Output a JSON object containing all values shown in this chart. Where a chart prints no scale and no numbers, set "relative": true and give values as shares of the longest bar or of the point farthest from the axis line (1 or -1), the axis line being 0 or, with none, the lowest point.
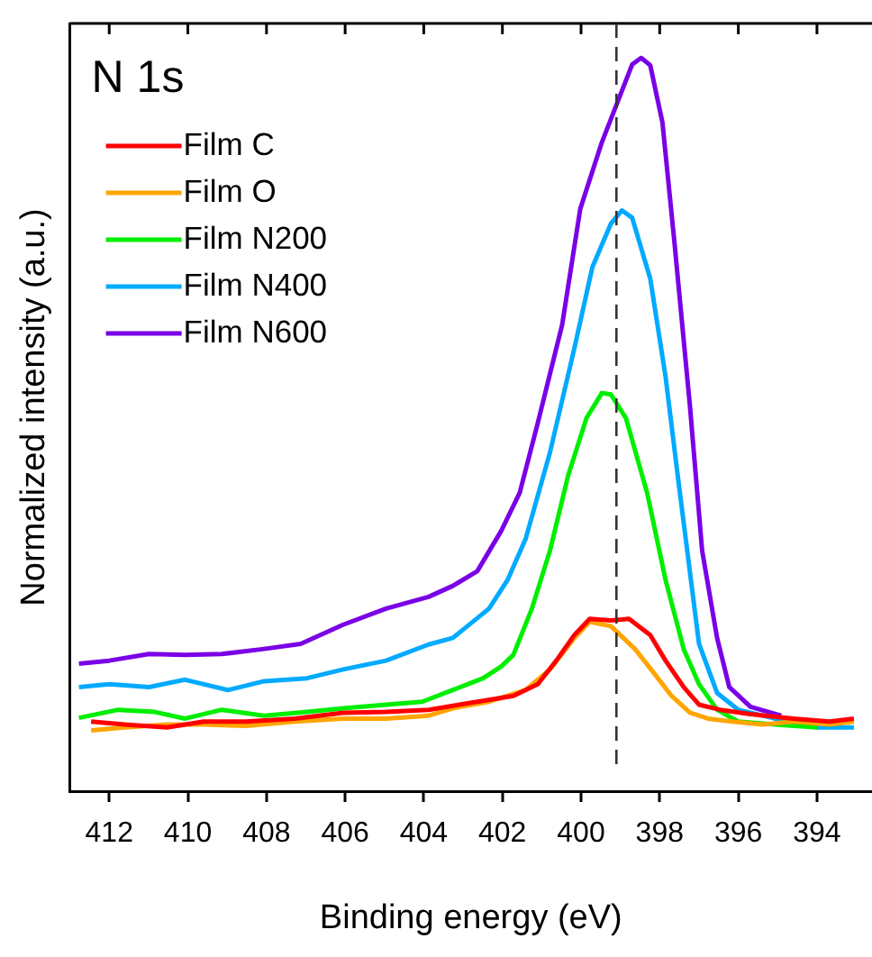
{
  "chart_data": {
    "type": "line",
    "title": "N 1s",
    "xlabel": "Binding energy (eV)",
    "ylabel": "Normalized intensity (a.u.)",
    "relative": true,
    "xlim": [
      413,
      392.6
    ],
    "xticks": [
      412,
      410,
      408,
      406,
      404,
      402,
      400,
      398,
      396,
      394
    ],
    "tick_labels": "x",
    "grid": false,
    "legend": "top left",
    "marker": "none",
    "line_style": "solid",
    "ref_lines": [
      {
        "axis": "x",
        "value": 399.1,
        "line_style": "dashed",
        "color": "#333333"
      }
    ],
    "series": [
      {
        "name": "Film C",
        "color": "#ff0000",
        "x": [
          412.46,
          411.61,
          410.53,
          409.6,
          408.52,
          407.28,
          406.05,
          404.96,
          403.88,
          402.64,
          401.72,
          401.1,
          400.63,
          400.17,
          399.78,
          399.24,
          398.78,
          398.24,
          397.85,
          397.39,
          397.0,
          396.46,
          395.69,
          394.6,
          393.68,
          393.06
        ],
        "values": [
          0.095,
          0.091,
          0.087,
          0.095,
          0.095,
          0.099,
          0.107,
          0.108,
          0.111,
          0.122,
          0.13,
          0.146,
          0.178,
          0.213,
          0.235,
          0.233,
          0.235,
          0.213,
          0.178,
          0.142,
          0.118,
          0.111,
          0.105,
          0.099,
          0.095,
          0.099
        ]
      },
      {
        "name": "Film O",
        "color": "#ffa500",
        "x": [
          412.46,
          411.61,
          410.53,
          409.6,
          408.52,
          407.28,
          406.05,
          404.96,
          403.88,
          403.26,
          402.34,
          401.41,
          400.79,
          400.17,
          399.78,
          399.24,
          398.63,
          398.16,
          397.7,
          397.23,
          396.77,
          396.15,
          395.38,
          394.6,
          393.68,
          393.06
        ],
        "values": [
          0.083,
          0.087,
          0.091,
          0.091,
          0.089,
          0.095,
          0.099,
          0.099,
          0.103,
          0.113,
          0.122,
          0.138,
          0.166,
          0.209,
          0.231,
          0.225,
          0.194,
          0.162,
          0.13,
          0.107,
          0.099,
          0.095,
          0.091,
          0.095,
          0.091,
          0.095
        ]
      },
      {
        "name": "Film N200",
        "color": "#00ee00",
        "x": [
          412.77,
          411.77,
          410.84,
          410.07,
          409.14,
          408.06,
          406.97,
          406.05,
          404.96,
          404.04,
          403.26,
          402.49,
          402.03,
          401.72,
          401.25,
          400.79,
          400.33,
          399.86,
          399.47,
          399.24,
          398.86,
          398.32,
          397.85,
          397.39,
          397.0,
          396.54,
          396.0,
          395.07,
          393.99
        ],
        "values": [
          0.1,
          0.111,
          0.108,
          0.099,
          0.111,
          0.103,
          0.108,
          0.113,
          0.118,
          0.122,
          0.138,
          0.154,
          0.17,
          0.186,
          0.249,
          0.328,
          0.43,
          0.509,
          0.543,
          0.541,
          0.509,
          0.407,
          0.288,
          0.194,
          0.146,
          0.111,
          0.095,
          0.091,
          0.087
        ]
      },
      {
        "name": "Film N400",
        "color": "#00aaff",
        "x": [
          412.77,
          412.0,
          410.99,
          410.07,
          408.98,
          408.06,
          406.97,
          406.05,
          404.96,
          403.88,
          403.26,
          402.34,
          401.87,
          401.41,
          400.79,
          400.17,
          399.71,
          399.24,
          398.96,
          398.7,
          398.24,
          397.85,
          397.54,
          397.0,
          396.54,
          396.0,
          395.07,
          393.99,
          393.06
        ],
        "values": [
          0.142,
          0.146,
          0.142,
          0.152,
          0.138,
          0.15,
          0.154,
          0.166,
          0.178,
          0.2,
          0.209,
          0.249,
          0.288,
          0.344,
          0.462,
          0.604,
          0.715,
          0.774,
          0.792,
          0.782,
          0.699,
          0.565,
          0.43,
          0.201,
          0.134,
          0.111,
          0.099,
          0.087,
          0.087
        ]
      },
      {
        "name": "Film N600",
        "color": "#7a00e6",
        "x": [
          412.77,
          412.0,
          410.99,
          410.07,
          409.14,
          408.06,
          407.13,
          406.05,
          404.96,
          403.88,
          403.26,
          402.64,
          402.03,
          401.56,
          401.1,
          400.48,
          400.02,
          399.47,
          398.7,
          398.47,
          398.24,
          397.93,
          397.62,
          397.23,
          396.92,
          396.54,
          396.23,
          395.69,
          394.91
        ],
        "values": [
          0.174,
          0.178,
          0.187,
          0.186,
          0.187,
          0.194,
          0.201,
          0.227,
          0.249,
          0.265,
          0.28,
          0.3,
          0.355,
          0.407,
          0.502,
          0.636,
          0.794,
          0.885,
          0.991,
          1,
          0.99,
          0.912,
          0.746,
          0.525,
          0.328,
          0.209,
          0.142,
          0.115,
          0.103
        ]
      }
    ]
  }
}
